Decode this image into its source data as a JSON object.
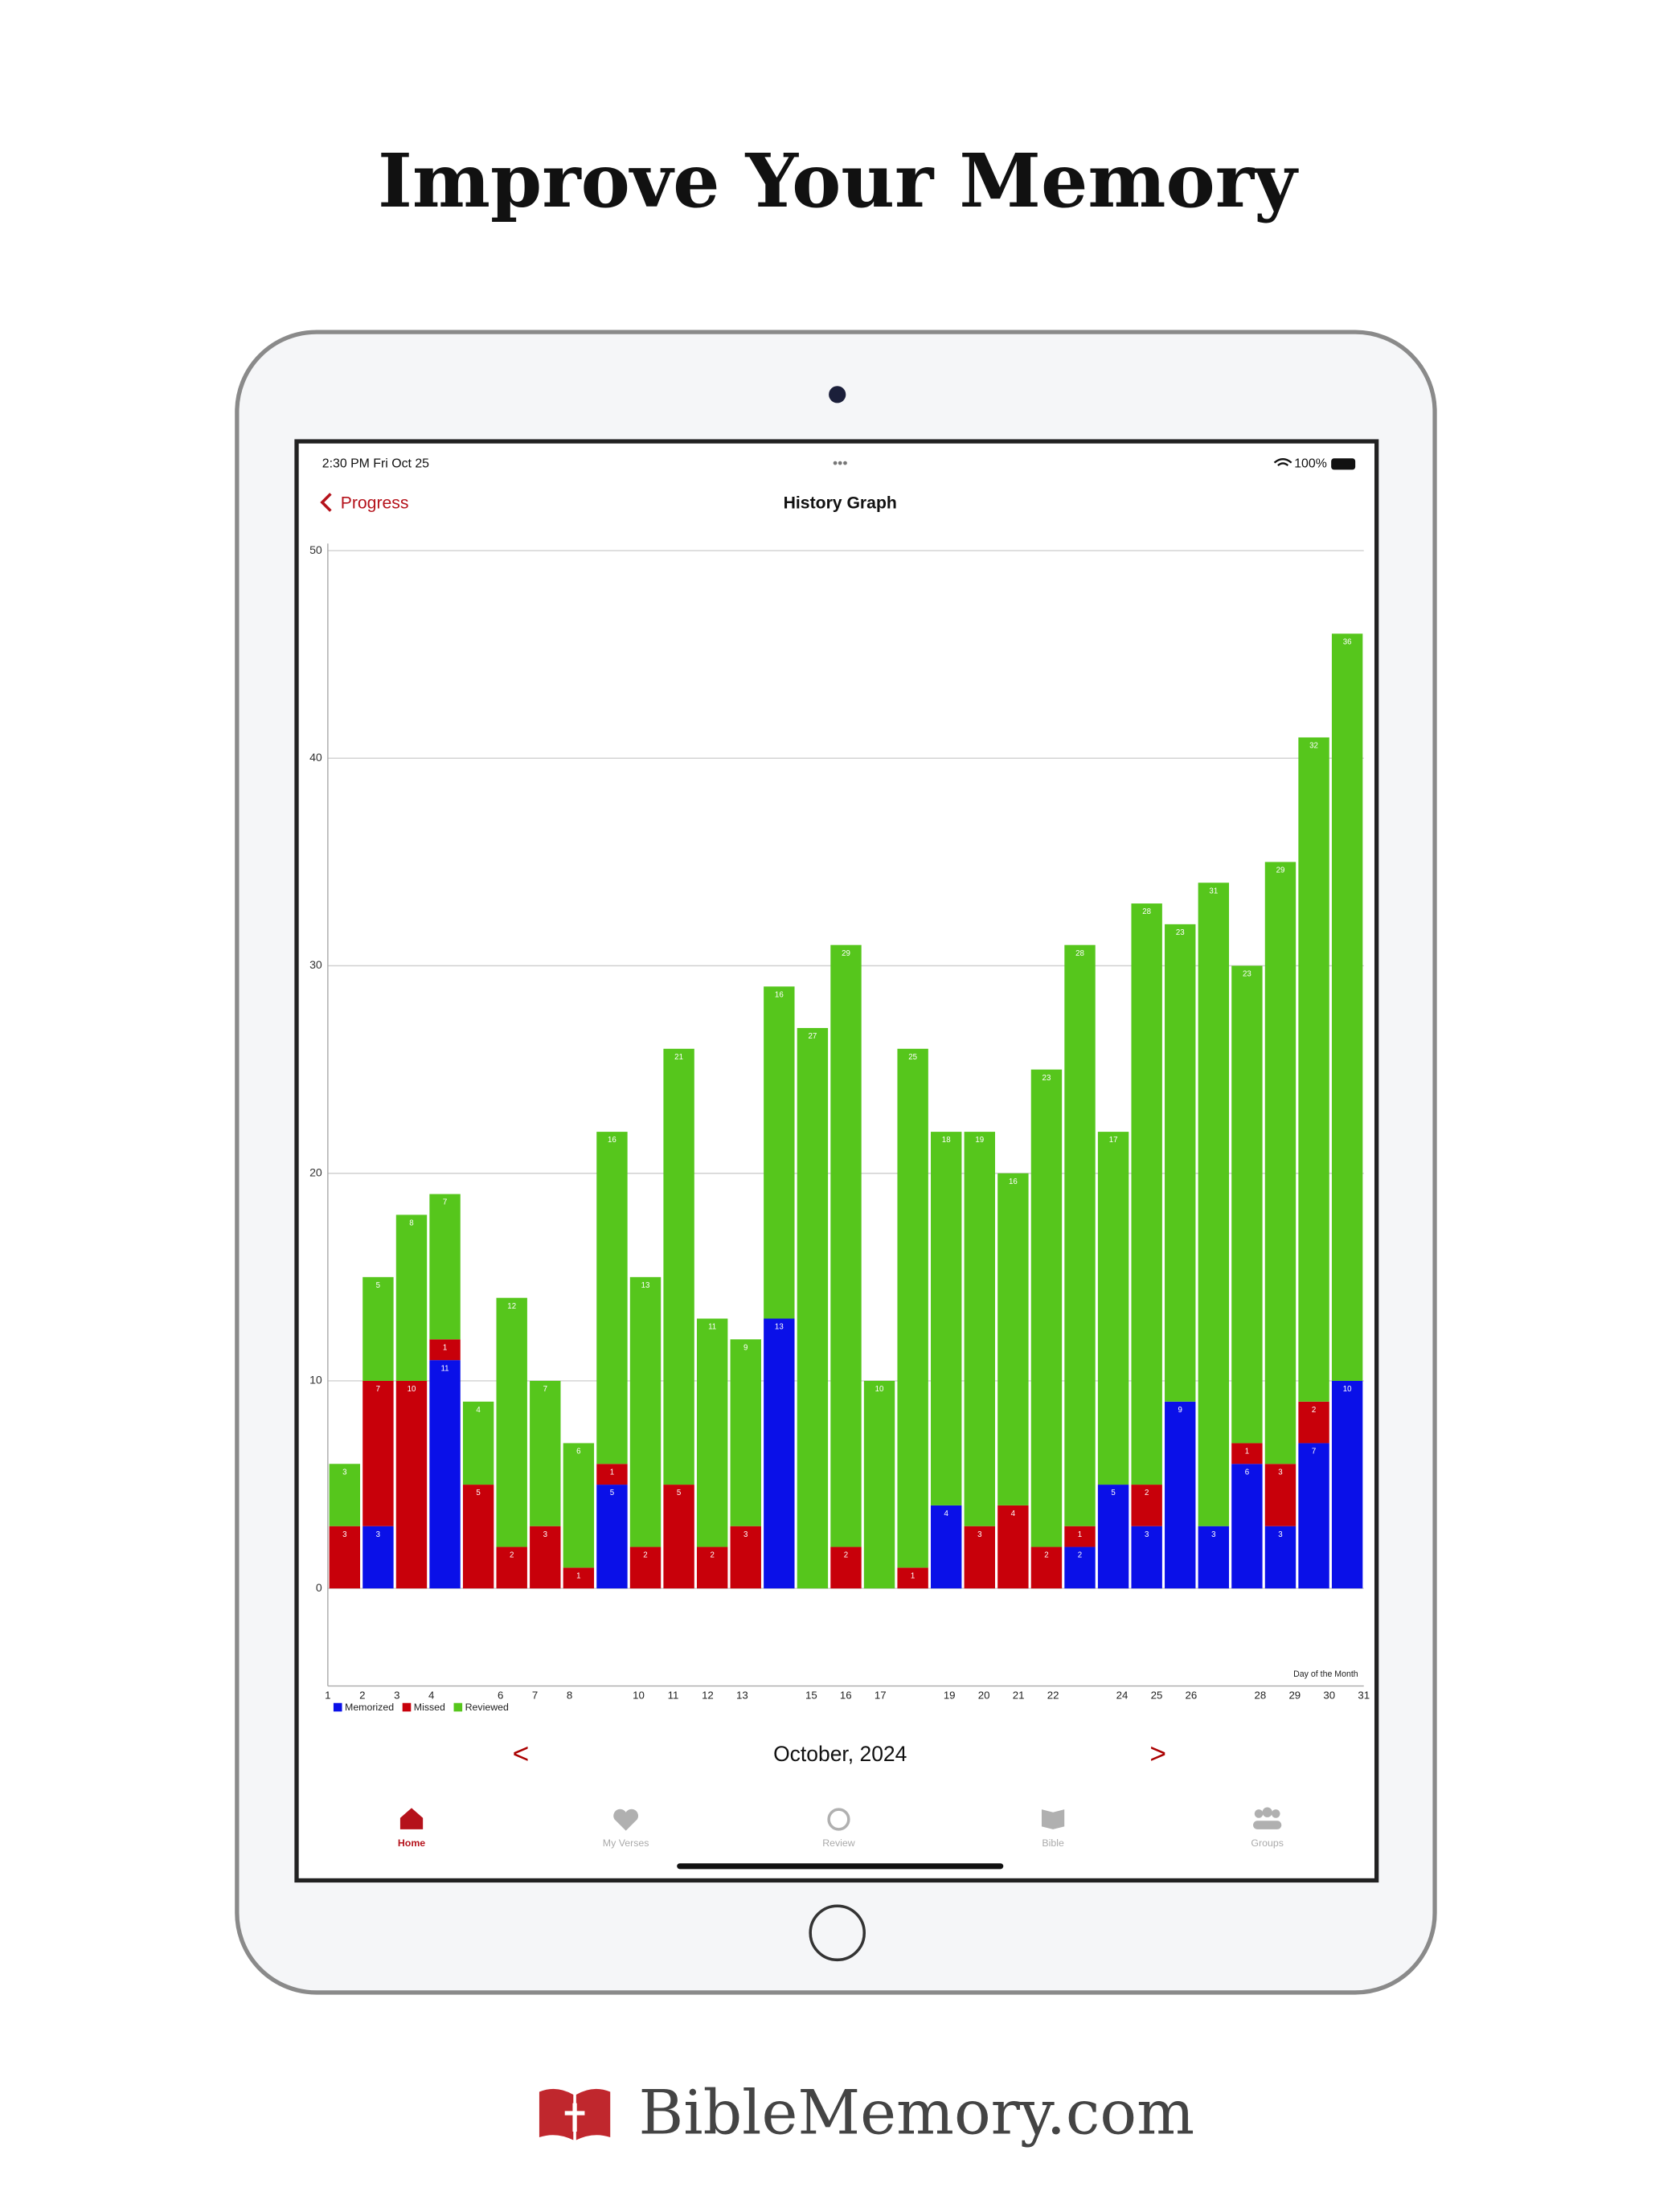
{
  "header": {
    "title": "Improve Your Memory"
  },
  "status_bar": {
    "time": "2:30 PM  Fri Oct 25",
    "battery": "100%"
  },
  "nav": {
    "back": "Progress",
    "title": "History Graph"
  },
  "chart_data": {
    "type": "bar",
    "stacked": true,
    "xlim": [
      1,
      31
    ],
    "xticks": [
      1,
      2,
      3,
      4,
      6,
      7,
      8,
      10,
      11,
      12,
      13,
      15,
      16,
      17,
      19,
      20,
      21,
      22,
      24,
      25,
      26,
      28,
      29,
      30,
      31
    ],
    "x_label": "Day of the Month",
    "ylim": [
      -4.7,
      50
    ],
    "yticks": [
      0,
      10,
      20,
      30,
      40,
      50
    ],
    "grid": true,
    "legend": "bottom-left",
    "series": [
      {
        "name": "Memorized",
        "color": "#0a10e8",
        "values": [
          0,
          3,
          0,
          11,
          0,
          0,
          0,
          0,
          5,
          0,
          0,
          0,
          0,
          13,
          0,
          0,
          0,
          0,
          4,
          0,
          0,
          0,
          2,
          5,
          3,
          9,
          3,
          6,
          3,
          7,
          10
        ]
      },
      {
        "name": "Missed",
        "color": "#c8000a",
        "values": [
          3,
          7,
          10,
          1,
          5,
          2,
          3,
          1,
          1,
          2,
          5,
          2,
          3,
          0,
          0,
          2,
          0,
          1,
          0,
          3,
          4,
          2,
          1,
          0,
          2,
          0,
          0,
          1,
          3,
          2,
          0
        ]
      },
      {
        "name": "Reviewed",
        "color": "#56c61c",
        "values": [
          3,
          5,
          8,
          7,
          4,
          12,
          7,
          6,
          16,
          13,
          21,
          11,
          9,
          16,
          27,
          29,
          10,
          25,
          18,
          19,
          16,
          23,
          28,
          17,
          28,
          23,
          31,
          23,
          29,
          32,
          36
        ]
      }
    ]
  },
  "month_nav": {
    "prev": "<",
    "label": "October, 2024",
    "next": ">"
  },
  "tabs": [
    "Home",
    "My Verses",
    "Review",
    "Bible",
    "Groups"
  ],
  "footer": {
    "brand": "BibleMemory.com"
  }
}
